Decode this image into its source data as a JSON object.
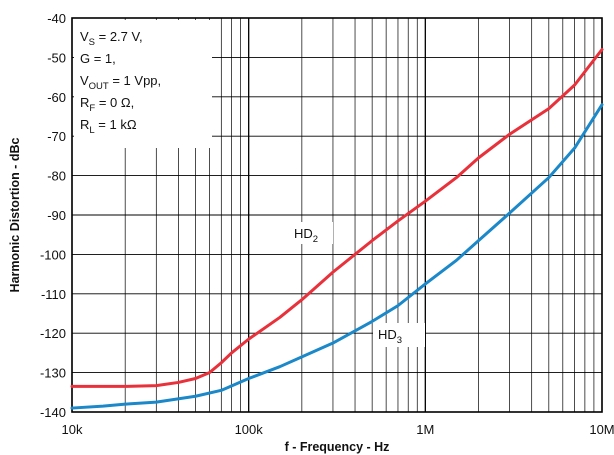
{
  "chart_data": {
    "type": "line",
    "title": "",
    "xlabel": "f - Frequency - Hz",
    "ylabel": "Harmonic Distortion - dBc",
    "x_scale": "log",
    "xlim": [
      10000,
      10000000
    ],
    "ylim": [
      -140,
      -40
    ],
    "grid": true,
    "x_ticks": [
      {
        "value": 10000,
        "label": "10k"
      },
      {
        "value": 100000,
        "label": "100k"
      },
      {
        "value": 1000000,
        "label": "1M"
      },
      {
        "value": 10000000,
        "label": "10M"
      }
    ],
    "y_ticks": [
      {
        "value": -40,
        "label": "-40"
      },
      {
        "value": -50,
        "label": "-50"
      },
      {
        "value": -60,
        "label": "-60"
      },
      {
        "value": -70,
        "label": "-70"
      },
      {
        "value": -80,
        "label": "-80"
      },
      {
        "value": -90,
        "label": "-90"
      },
      {
        "value": -100,
        "label": "-100"
      },
      {
        "value": -110,
        "label": "-110"
      },
      {
        "value": -120,
        "label": "-120"
      },
      {
        "value": -130,
        "label": "-130"
      },
      {
        "value": -140,
        "label": "-140"
      }
    ],
    "series": [
      {
        "name": "HD2",
        "color": "#e8313a",
        "x": [
          10000,
          20000,
          30000,
          40000,
          50000,
          60000,
          70000,
          80000,
          100000,
          150000,
          200000,
          300000,
          500000,
          700000,
          1000000,
          1500000,
          2000000,
          3000000,
          5000000,
          7000000,
          10000000
        ],
        "y": [
          -133.5,
          -133.5,
          -133.3,
          -132.5,
          -131.5,
          -130,
          -127.5,
          -125,
          -121.5,
          -116,
          -111.5,
          -104.5,
          -96.5,
          -91.5,
          -86.5,
          -80.5,
          -75.5,
          -69.5,
          -63,
          -57,
          -48
        ]
      },
      {
        "name": "HD3",
        "color": "#1a88c9",
        "x": [
          10000,
          15000,
          20000,
          30000,
          50000,
          70000,
          100000,
          150000,
          200000,
          300000,
          500000,
          700000,
          1000000,
          1500000,
          2000000,
          3000000,
          5000000,
          7000000,
          10000000
        ],
        "y": [
          -139,
          -138.5,
          -138,
          -137.5,
          -136,
          -134.5,
          -131.5,
          -128.5,
          -126,
          -122.5,
          -117,
          -113,
          -107.5,
          -101.5,
          -96.5,
          -89.5,
          -80.5,
          -73,
          -62
        ]
      }
    ],
    "annotations": {
      "series_labels": [
        {
          "base": "HD",
          "sub": "2"
        },
        {
          "base": "HD",
          "sub": "3"
        }
      ],
      "conditions": [
        {
          "text": "V",
          "sub": "S",
          "rest": " = 2.7 V,"
        },
        {
          "text": "G = 1,",
          "sub": "",
          "rest": ""
        },
        {
          "text": "V",
          "sub": "OUT",
          "rest": " = 1 Vpp,"
        },
        {
          "text": "R",
          "sub": "F",
          "rest": " = 0 Ω,"
        },
        {
          "text": "R",
          "sub": "L",
          "rest": " = 1 kΩ"
        }
      ]
    }
  }
}
